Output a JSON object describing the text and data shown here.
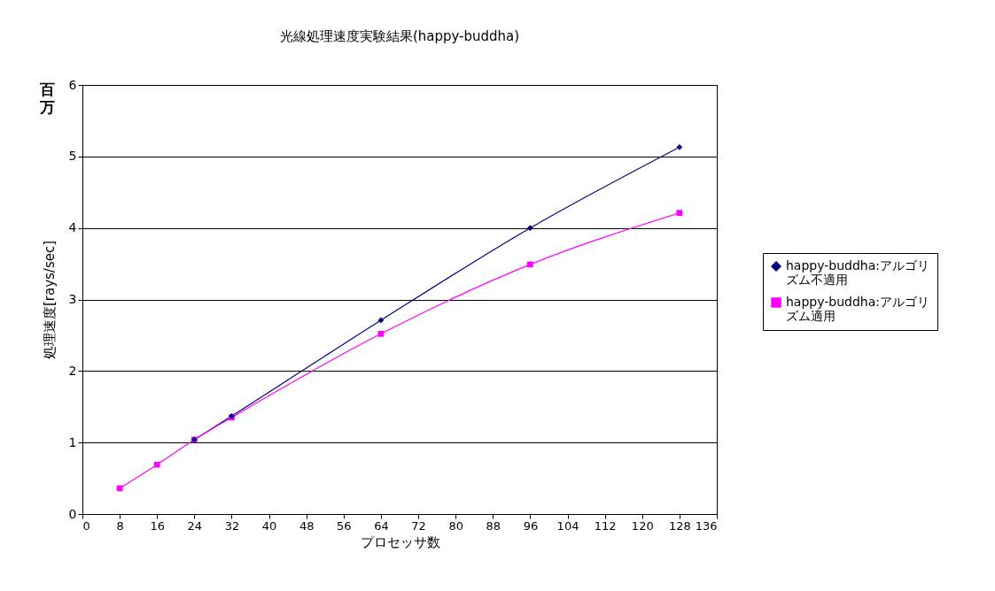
{
  "chart_data": {
    "type": "line",
    "title": "光線処理速度実験結果(happy-buddha)",
    "xlabel": "プロセッサ数",
    "ylabel": "処理速度[rays/sec]",
    "annotations": [
      "百万"
    ],
    "x": [
      8,
      16,
      24,
      32,
      64,
      96,
      128
    ],
    "series": [
      {
        "name": "happy-buddha:アルゴリズム不適用",
        "color": "#000080",
        "marker": "diamond",
        "values": [
          null,
          null,
          1.04,
          1.37,
          2.71,
          4.0,
          5.13
        ]
      },
      {
        "name": "happy-buddha:アルゴリズム適用",
        "color": "#ff00ff",
        "marker": "square",
        "values": [
          0.36,
          0.69,
          1.04,
          1.35,
          2.52,
          3.49,
          4.21
        ]
      }
    ],
    "xlim": [
      0,
      136
    ],
    "xticks": [
      0,
      8,
      16,
      24,
      32,
      40,
      48,
      56,
      64,
      72,
      80,
      88,
      96,
      104,
      112,
      120,
      128,
      136
    ],
    "ylim": [
      0,
      6
    ],
    "yticks": [
      0,
      1,
      2,
      3,
      4,
      5,
      6
    ],
    "grid": "y",
    "legend": "right",
    "line_style": "solid"
  }
}
